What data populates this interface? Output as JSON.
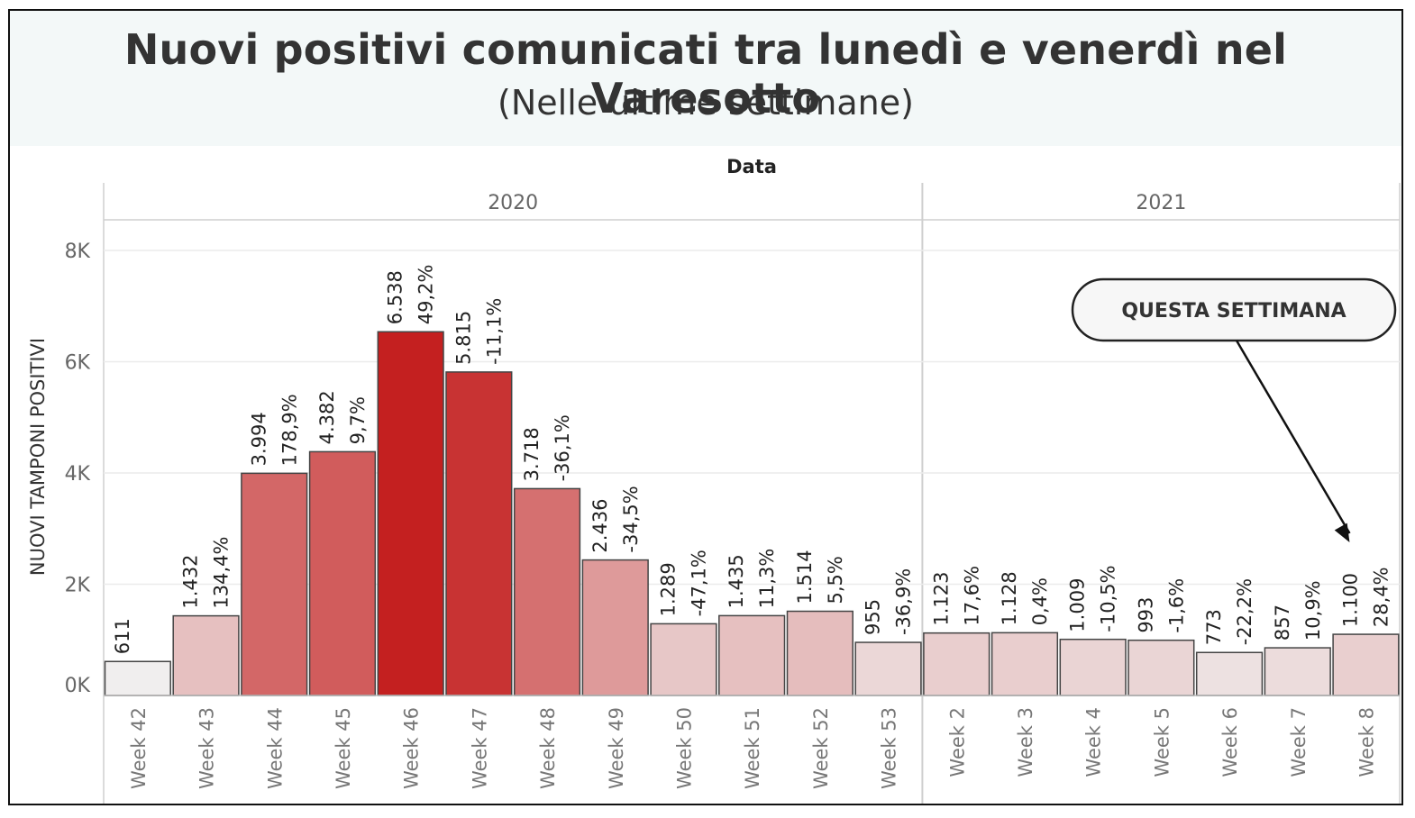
{
  "header": {
    "title": "Nuovi positivi comunicati tra lunedì e venerdì nel Varesotto",
    "subtitle": "(Nelle ultime settimane)"
  },
  "chart_data": {
    "type": "bar",
    "column_header": "Data",
    "panels": [
      {
        "name": "2020",
        "categories": [
          "Week 42",
          "Week 43",
          "Week 44",
          "Week 45",
          "Week 46",
          "Week 47",
          "Week 48",
          "Week 49",
          "Week 50",
          "Week 51",
          "Week 52",
          "Week 53"
        ]
      },
      {
        "name": "2021",
        "categories": [
          "Week 2",
          "Week 3",
          "Week 4",
          "Week 5",
          "Week 6",
          "Week 7",
          "Week 8"
        ]
      }
    ],
    "categories": [
      "Week 42",
      "Week 43",
      "Week 44",
      "Week 45",
      "Week 46",
      "Week 47",
      "Week 48",
      "Week 49",
      "Week 50",
      "Week 51",
      "Week 52",
      "Week 53",
      "Week 2",
      "Week 3",
      "Week 4",
      "Week 5",
      "Week 6",
      "Week 7",
      "Week 8"
    ],
    "values": [
      611,
      1432,
      3994,
      4382,
      6538,
      5815,
      3718,
      2436,
      1289,
      1435,
      1514,
      955,
      1123,
      1128,
      1009,
      993,
      773,
      857,
      1100
    ],
    "value_labels": [
      "611",
      "1.432",
      "3.994",
      "4.382",
      "6.538",
      "5.815",
      "3.718",
      "2.436",
      "1.289",
      "1.435",
      "1.514",
      "955",
      "1.123",
      "1.128",
      "1.009",
      "993",
      "773",
      "857",
      "1.100"
    ],
    "pct_labels": [
      "",
      "134,4%",
      "178,9%",
      "9,7%",
      "49,2%",
      "-11,1%",
      "-36,1%",
      "-34,5%",
      "-47,1%",
      "11,3%",
      "5,5%",
      "-36,9%",
      "17,6%",
      "0,4%",
      "-10,5%",
      "-1,6%",
      "-22,2%",
      "10,9%",
      "28,4%"
    ],
    "pct_change": [
      null,
      134.4,
      178.9,
      9.7,
      49.2,
      -11.1,
      -36.1,
      -34.5,
      -47.1,
      11.3,
      5.5,
      -36.9,
      17.6,
      0.4,
      -10.5,
      -1.6,
      -22.2,
      10.9,
      28.4
    ],
    "ylabel": "NUOVI TAMPONI POSITIVI",
    "ylim": [
      0,
      8000
    ],
    "yticks": [
      0,
      2000,
      4000,
      6000,
      8000
    ],
    "ytick_labels": [
      "0K",
      "2K",
      "4K",
      "6K",
      "8K"
    ],
    "grid": true,
    "color_scale": {
      "low": "#f0f0f0",
      "high": "#c42020"
    },
    "annotation": {
      "text": "QUESTA SETTIMANA",
      "target": "Week 8"
    }
  }
}
